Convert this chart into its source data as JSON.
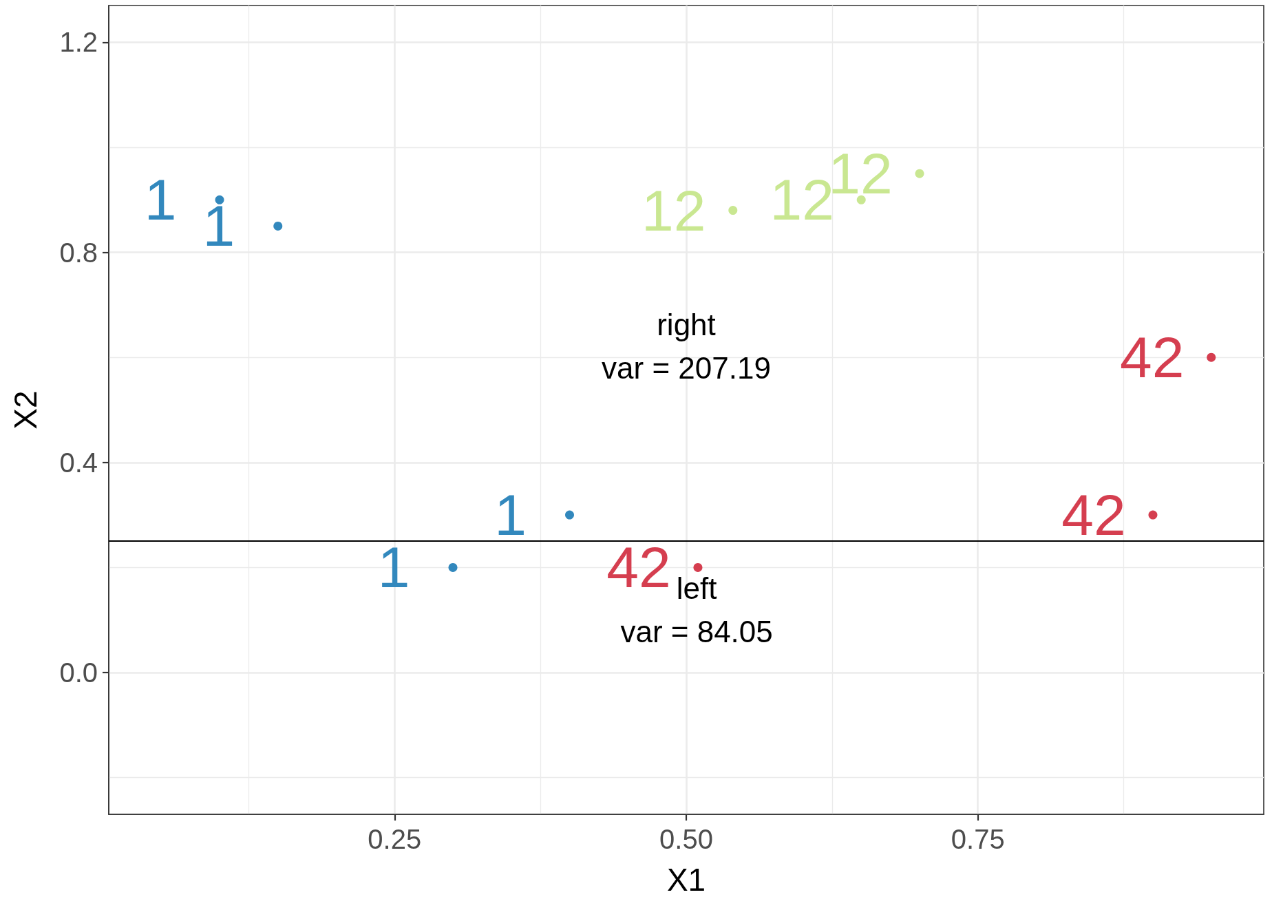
{
  "chart_data": {
    "type": "scatter",
    "xlabel": "X1",
    "ylabel": "X2",
    "xlim": [
      0.005,
      0.995
    ],
    "xticks": [
      {
        "value": 0.125,
        "label": null
      },
      0.25,
      {
        "value": 0.375,
        "label": null
      },
      {
        "value": 0.5,
        "label": "0.50"
      },
      {
        "value": 0.625,
        "label": null
      },
      0.75,
      {
        "value": 0.875,
        "label": null
      }
    ],
    "ylim": [
      -0.27,
      1.27
    ],
    "yticks": [
      {
        "value": -0.2,
        "label": null
      },
      {
        "value": 0,
        "label": "0.0"
      },
      {
        "value": 0.2,
        "label": null
      },
      0.4,
      {
        "value": 0.6,
        "label": null
      },
      0.8,
      {
        "value": 1.0,
        "label": null
      },
      1.2
    ],
    "grid": true,
    "marker": "circle",
    "series": [
      {
        "name": "1",
        "color": "#3288bd",
        "x": [
          0.1,
          0.15,
          0.3,
          0.4
        ],
        "values": [
          0.9,
          0.85,
          0.2,
          0.3
        ]
      },
      {
        "name": "12",
        "color": "#c9e791",
        "x": [
          0.54,
          0.65,
          0.7
        ],
        "values": [
          0.88,
          0.9,
          0.95
        ]
      },
      {
        "name": "42",
        "color": "#d53e4f",
        "x": [
          0.95,
          0.9,
          0.51
        ],
        "values": [
          0.6,
          0.3,
          0.2
        ]
      }
    ],
    "ref_lines": [
      {
        "axis": "y",
        "value": 0.25,
        "color": "#000000"
      }
    ],
    "annotations": [
      "right\nvar = 207.19",
      "left\nvar = 84.05"
    ]
  }
}
